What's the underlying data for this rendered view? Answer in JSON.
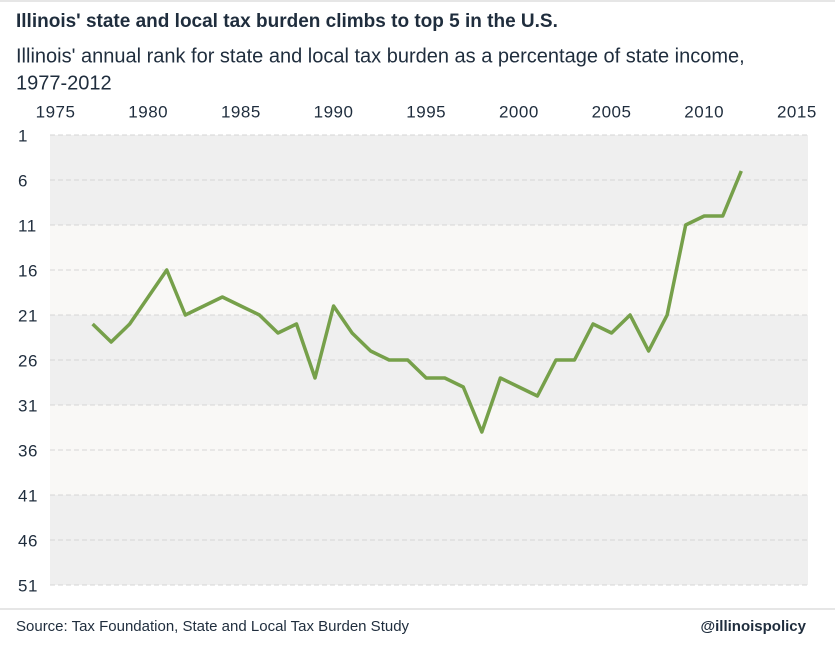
{
  "chart_data": {
    "type": "line",
    "title": "Illinois' state and local tax burden climbs to top 5 in the U.S.",
    "subtitle": [
      "Illinois' annual rank for state and local tax burden as a percentage of state income,",
      "1977-2012"
    ],
    "source": "Source: Tax Foundation, State and Local Tax Burden Study",
    "credit": "@illinoispolicy",
    "x": [
      1977,
      1978,
      1979,
      1980,
      1981,
      1982,
      1983,
      1984,
      1985,
      1986,
      1987,
      1988,
      1989,
      1990,
      1991,
      1992,
      1993,
      1994,
      1995,
      1996,
      1997,
      1998,
      1999,
      2000,
      2001,
      2002,
      2003,
      2004,
      2005,
      2006,
      2007,
      2008,
      2009,
      2010,
      2011,
      2012
    ],
    "series": [
      {
        "name": "Illinois",
        "color": "#76a04a",
        "values": [
          22,
          24,
          22,
          19,
          16,
          21,
          20,
          19,
          20,
          21,
          23,
          22,
          28,
          20,
          23,
          25,
          26,
          26,
          28,
          28,
          29,
          34,
          28,
          29,
          30,
          26,
          26,
          22,
          23,
          21,
          25,
          21,
          11,
          10,
          10,
          5
        ]
      }
    ],
    "xlim": [
      1974.7,
      2015.6
    ],
    "xticks": [
      1975,
      1980,
      1985,
      1990,
      1995,
      2000,
      2005,
      2010,
      2015
    ],
    "ylim": [
      1,
      51
    ],
    "yticks": [
      1,
      6,
      11,
      16,
      21,
      26,
      31,
      36,
      41,
      46,
      51
    ],
    "y_inverted": true,
    "grid": true
  }
}
